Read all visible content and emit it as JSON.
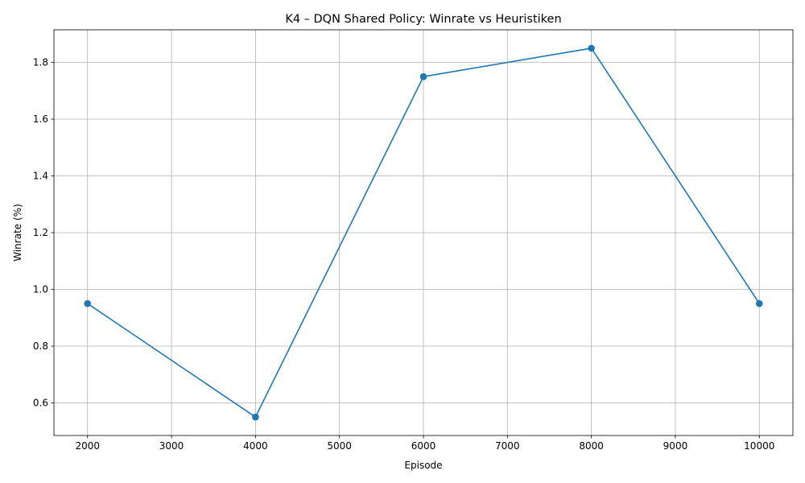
{
  "chart_data": {
    "type": "line",
    "title": "K4 – DQN Shared Policy: Winrate vs Heuristiken",
    "xlabel": "Episode",
    "ylabel": "Winrate (%)",
    "xlim": [
      1600,
      10400
    ],
    "ylim": [
      0.485,
      1.915
    ],
    "xticks": [
      2000,
      3000,
      4000,
      5000,
      6000,
      7000,
      8000,
      9000,
      10000
    ],
    "yticks": [
      0.6,
      0.8,
      1.0,
      1.2,
      1.4,
      1.6,
      1.8
    ],
    "grid": true,
    "series": [
      {
        "x": [
          2000,
          4000,
          6000,
          8000,
          10000
        ],
        "y": [
          0.95,
          0.55,
          1.75,
          1.85,
          0.95
        ],
        "color": "#1f77b4",
        "marker": "circle"
      }
    ]
  }
}
